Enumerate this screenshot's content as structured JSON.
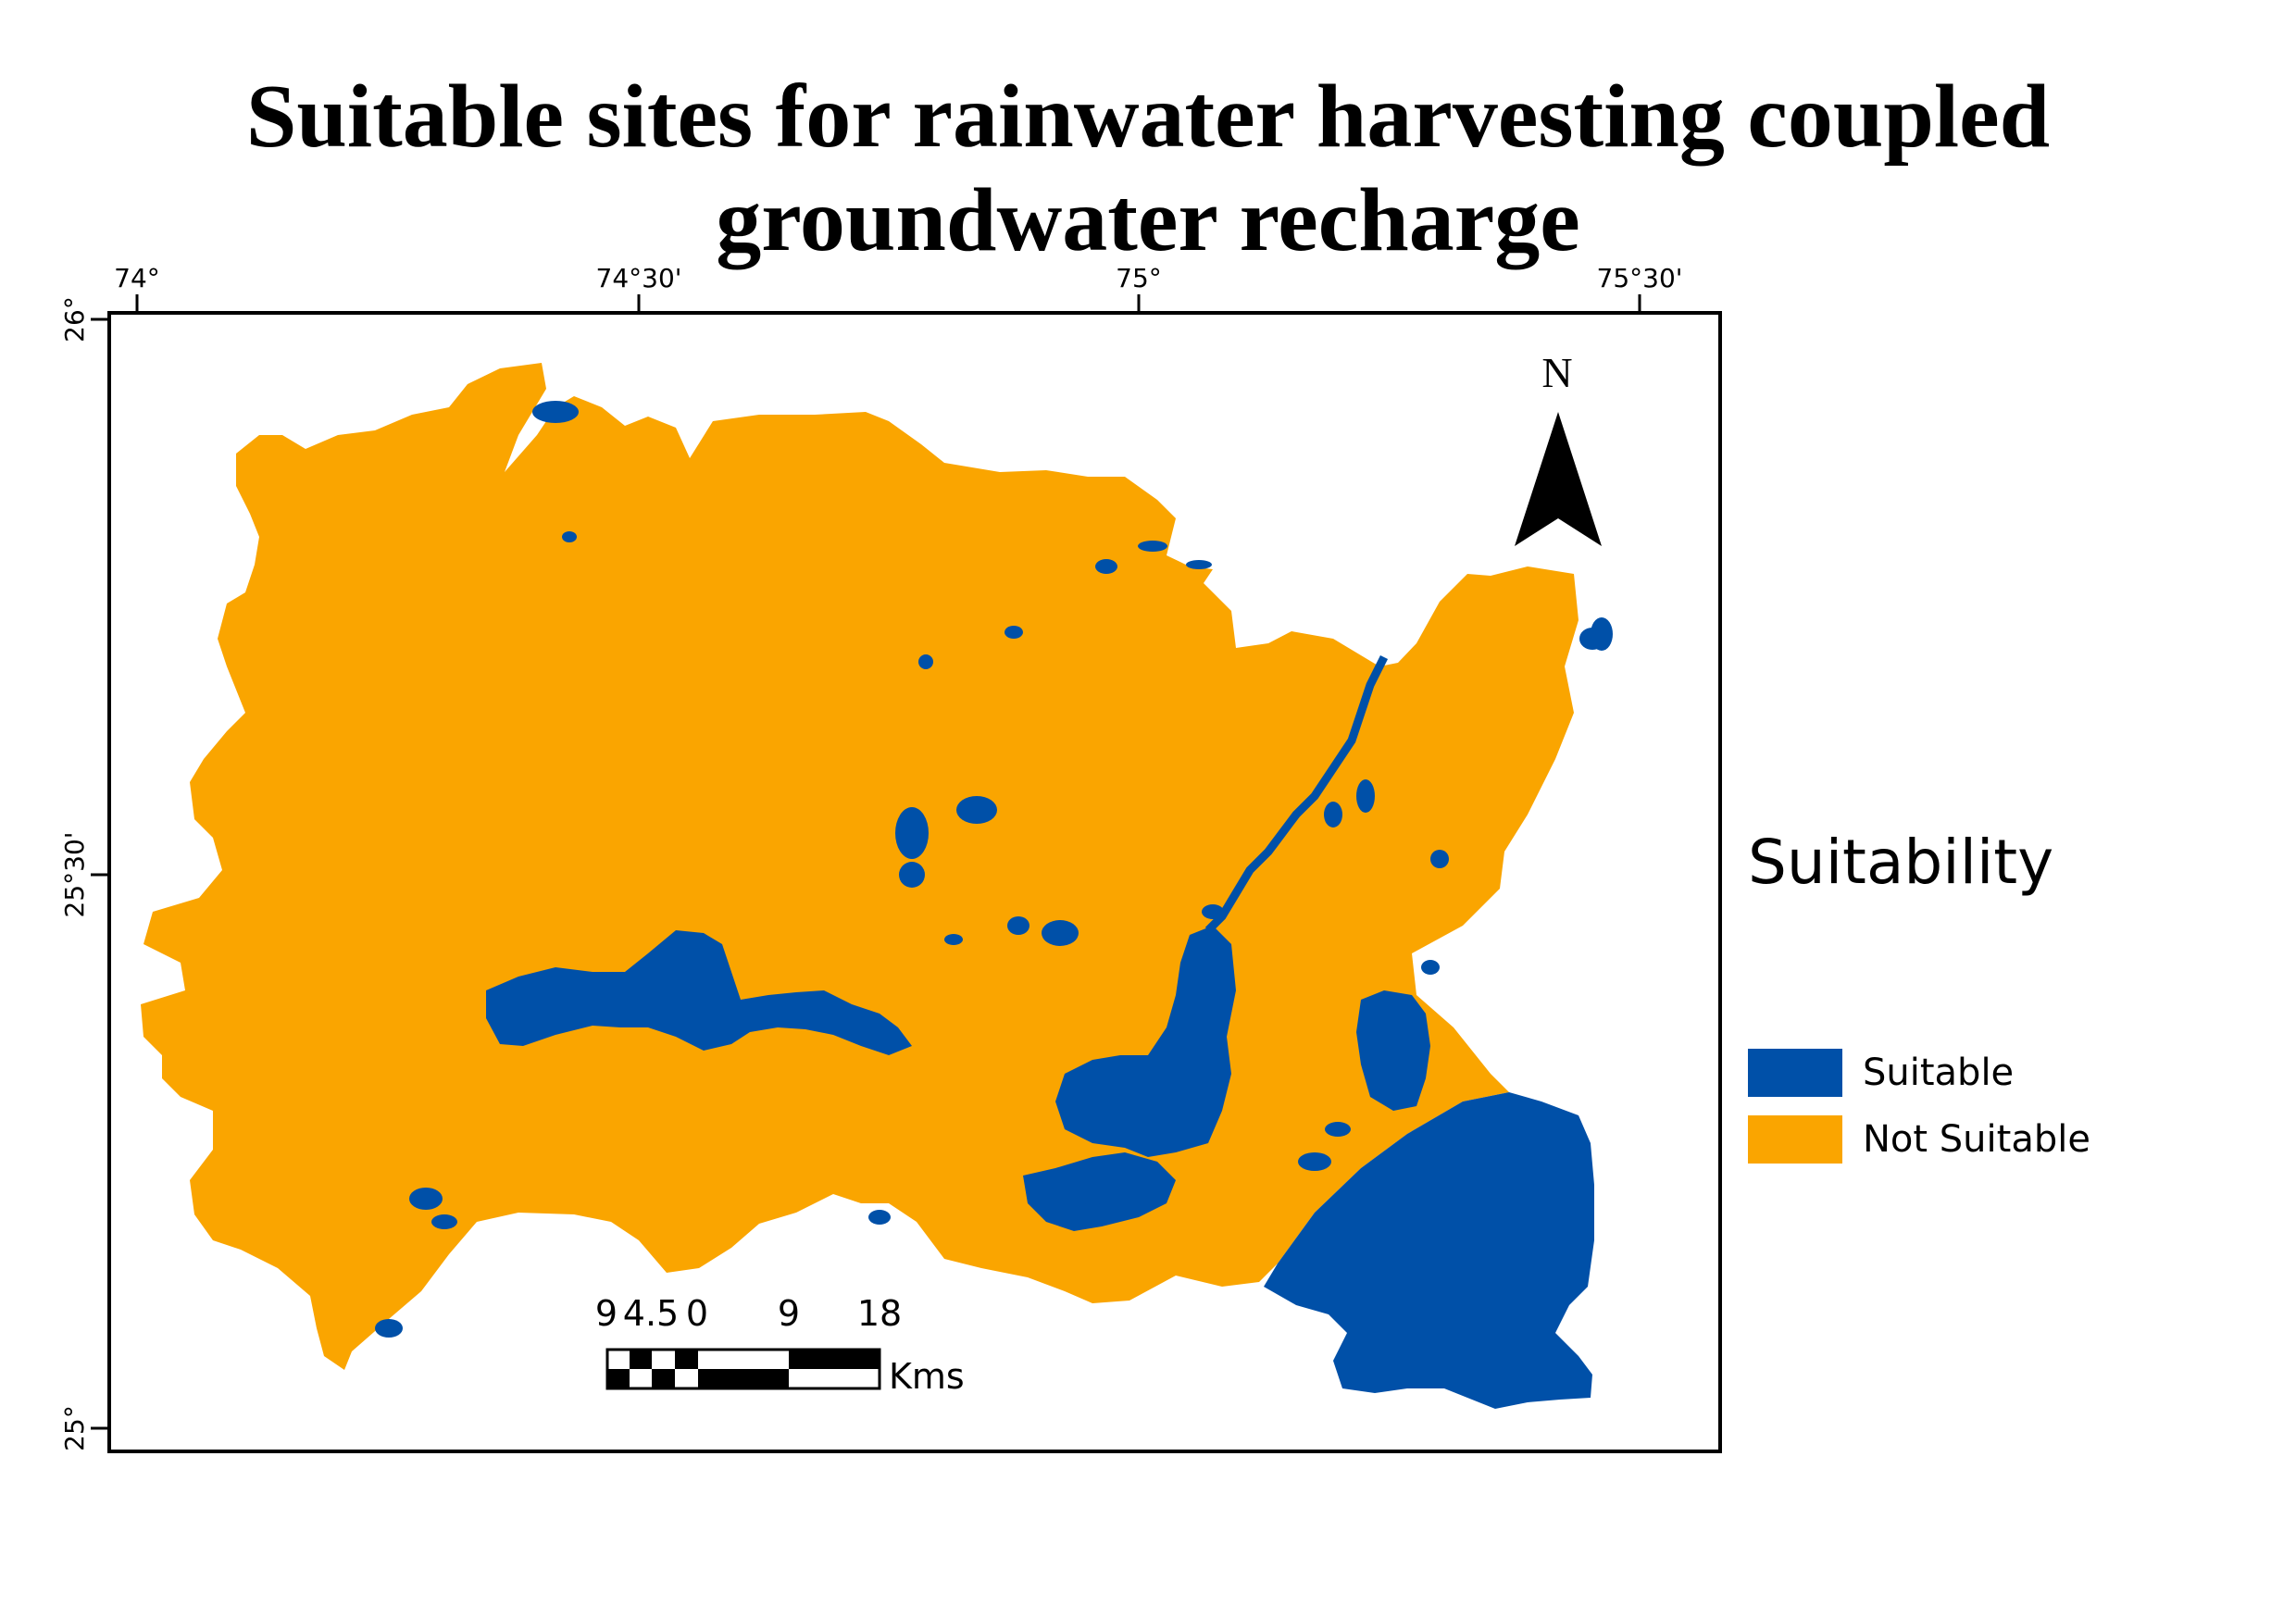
{
  "title": {
    "line1": "Suitable sites for rainwater harvesting coupled",
    "line2": "groundwater recharge"
  },
  "graticule": {
    "top_labels": [
      "74°",
      "74°30'",
      "75°",
      "75°30'"
    ],
    "left_labels": [
      "26°",
      "25°30'",
      "25°"
    ]
  },
  "north_arrow": {
    "label": "N"
  },
  "scale_bar": {
    "tick_labels": [
      "9",
      "4.5",
      "0",
      "9",
      "18"
    ],
    "unit": "Kms"
  },
  "legend": {
    "title": "Suitability",
    "items": [
      {
        "label": "Suitable",
        "color": "#0050A8"
      },
      {
        "label": "Not Suitable",
        "color": "#FAA500"
      }
    ]
  },
  "colors": {
    "suitable": "#0050A8",
    "not_suitable": "#FAA500",
    "frame": "#000000"
  }
}
